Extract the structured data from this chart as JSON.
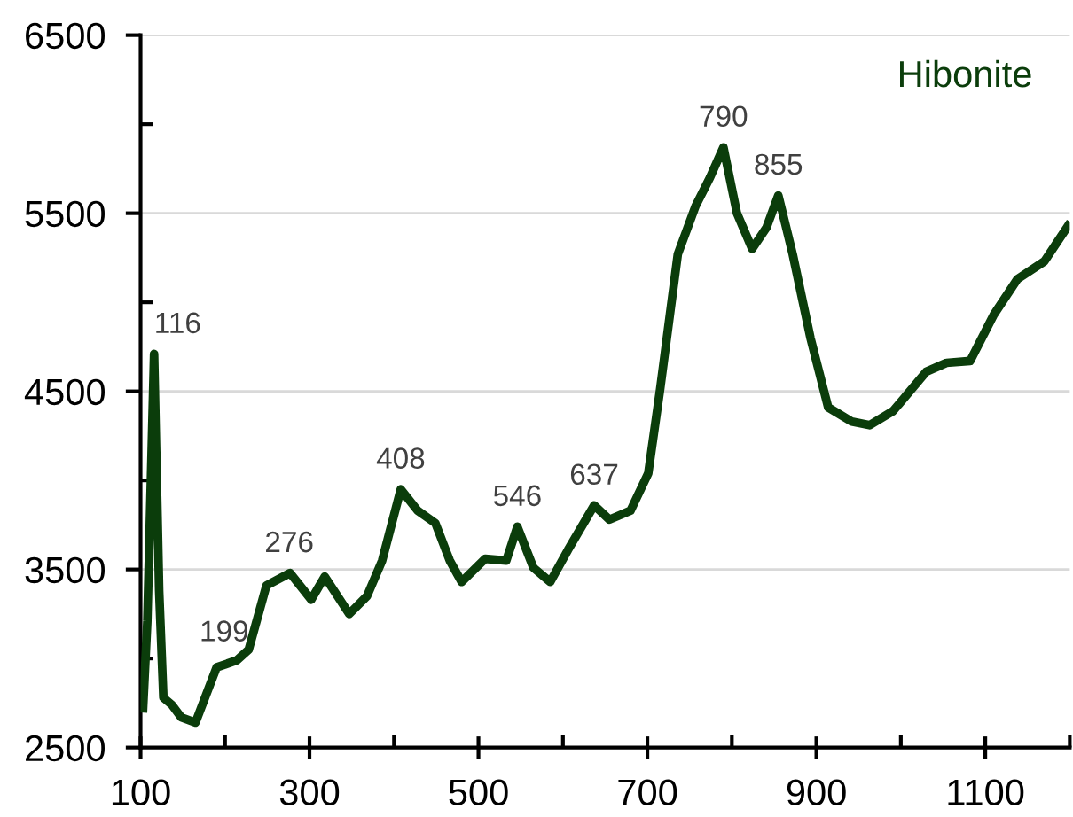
{
  "chart_data": {
    "type": "line",
    "title": "Hibonite",
    "x": [
      103,
      108,
      116,
      122,
      127,
      137,
      148,
      165,
      190,
      214,
      228,
      249,
      277,
      302,
      318,
      347,
      368,
      386,
      408,
      428,
      449,
      466,
      480,
      508,
      533,
      546,
      565,
      585,
      606,
      637,
      655,
      680,
      701,
      715,
      736,
      757,
      774,
      790,
      806,
      824,
      841,
      855,
      872,
      893,
      914,
      942,
      963,
      991,
      1030,
      1054,
      1082,
      1110,
      1138,
      1170,
      1198
    ],
    "series": [
      {
        "color": "#0b3d0b",
        "values": [
          2720,
          3210,
          4710,
          3380,
          2780,
          2740,
          2670,
          2640,
          2950,
          2990,
          3050,
          3410,
          3480,
          3330,
          3460,
          3250,
          3350,
          3550,
          3950,
          3830,
          3760,
          3550,
          3430,
          3560,
          3550,
          3740,
          3510,
          3430,
          3610,
          3860,
          3780,
          3830,
          4040,
          4510,
          5270,
          5540,
          5700,
          5870,
          5500,
          5300,
          5420,
          5600,
          5270,
          4800,
          4410,
          4330,
          4310,
          4390,
          4610,
          4660,
          4670,
          4930,
          5130,
          5230,
          5430
        ]
      }
    ],
    "xlim": [
      100,
      1200
    ],
    "xticks": [
      100,
      {
        "value": 200,
        "label": null
      },
      300,
      {
        "value": 400,
        "label": null
      },
      500,
      {
        "value": 600,
        "label": null
      },
      700,
      {
        "value": 800,
        "label": null
      },
      900,
      {
        "value": 1000,
        "label": null
      },
      1100,
      {
        "value": 1200,
        "label": null
      }
    ],
    "ylim": [
      2500,
      6500
    ],
    "yticks": [
      2500,
      {
        "value": 3000,
        "label": null
      },
      3500,
      {
        "value": 4000,
        "label": null
      },
      4500,
      {
        "value": 5000,
        "label": null
      },
      5500,
      {
        "value": 6000,
        "label": null
      },
      6500
    ],
    "grid": "y",
    "marker": "none",
    "line_style": "solid",
    "annotations": [
      {
        "text": "116",
        "x": 116,
        "y": 4710
      },
      {
        "text": "199",
        "x": 199,
        "y": 2980
      },
      {
        "text": "276",
        "x": 276,
        "y": 3480
      },
      {
        "text": "408",
        "x": 408,
        "y": 3950
      },
      {
        "text": "546",
        "x": 546,
        "y": 3740
      },
      {
        "text": "637",
        "x": 637,
        "y": 3860
      },
      {
        "text": "790",
        "x": 790,
        "y": 5870
      },
      {
        "text": "855",
        "x": 855,
        "y": 5600
      }
    ]
  }
}
